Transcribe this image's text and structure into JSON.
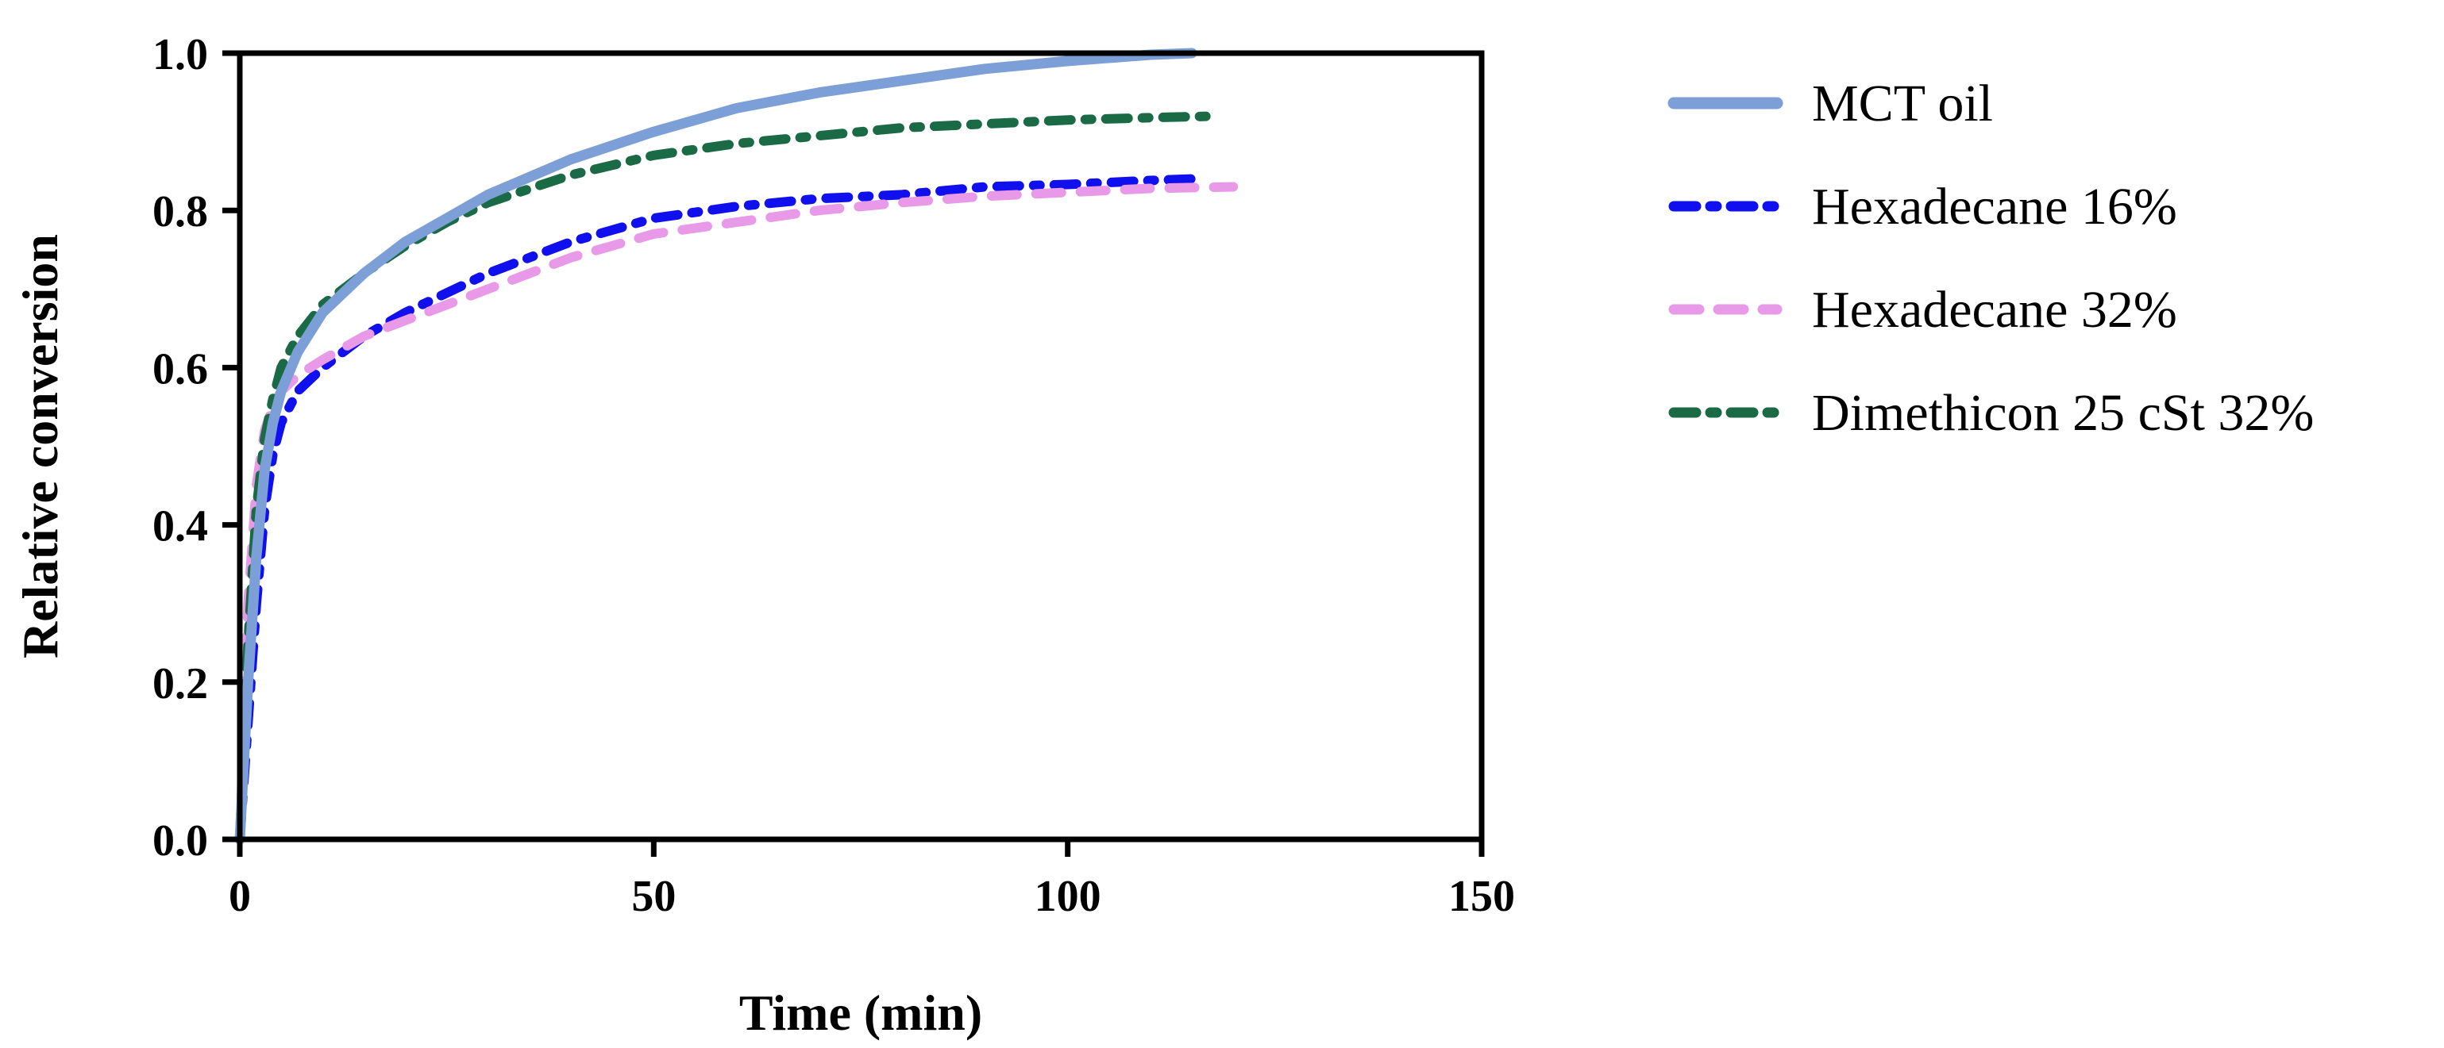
{
  "chart_data": {
    "type": "line",
    "xlabel": "Time (min)",
    "ylabel": "Relative conversion",
    "xlim": [
      0,
      150
    ],
    "ylim": [
      0.0,
      1.0
    ],
    "xticks": [
      0,
      50,
      100,
      150
    ],
    "xtick_labels": [
      "0",
      "50",
      "100",
      "150"
    ],
    "yticks": [
      0.0,
      0.2,
      0.4,
      0.6,
      0.8,
      1.0
    ],
    "ytick_labels": [
      "0.0",
      "0.2",
      "0.4",
      "0.6",
      "0.8",
      "1.0"
    ],
    "grid": false,
    "legend_position": "right",
    "series": [
      {
        "name": "MCT oil",
        "color": "#7b9fd6",
        "style": "solid",
        "x": [
          0,
          1,
          2,
          3,
          4,
          5,
          7,
          10,
          15,
          20,
          25,
          30,
          40,
          50,
          60,
          70,
          80,
          90,
          100,
          110,
          115
        ],
        "y": [
          0.0,
          0.2,
          0.36,
          0.47,
          0.53,
          0.57,
          0.62,
          0.67,
          0.72,
          0.76,
          0.79,
          0.82,
          0.865,
          0.9,
          0.93,
          0.95,
          0.965,
          0.98,
          0.99,
          0.998,
          1.0
        ]
      },
      {
        "name": "Hexadecane 16%",
        "color": "#1010ee",
        "style": "dash-dot",
        "x": [
          0,
          1,
          2,
          3,
          4,
          5,
          7,
          10,
          15,
          20,
          30,
          40,
          50,
          60,
          70,
          80,
          90,
          100,
          110,
          115
        ],
        "y": [
          0.0,
          0.15,
          0.3,
          0.42,
          0.49,
          0.53,
          0.57,
          0.6,
          0.64,
          0.67,
          0.72,
          0.76,
          0.79,
          0.805,
          0.815,
          0.82,
          0.83,
          0.833,
          0.838,
          0.84
        ]
      },
      {
        "name": "Hexadecane 32%",
        "color": "#e89ae8",
        "style": "dash",
        "x": [
          0,
          1,
          2,
          3,
          4,
          5,
          7,
          10,
          15,
          20,
          30,
          40,
          50,
          60,
          70,
          80,
          90,
          100,
          110,
          120
        ],
        "y": [
          0.0,
          0.3,
          0.45,
          0.52,
          0.55,
          0.57,
          0.59,
          0.61,
          0.64,
          0.66,
          0.7,
          0.74,
          0.77,
          0.785,
          0.8,
          0.81,
          0.818,
          0.823,
          0.828,
          0.83
        ]
      },
      {
        "name": "Dimethicon 25 cSt 32%",
        "color": "#1a6b45",
        "style": "dash-dot",
        "x": [
          0,
          1,
          2,
          3,
          4,
          5,
          7,
          10,
          15,
          20,
          25,
          30,
          40,
          50,
          60,
          70,
          80,
          90,
          100,
          110,
          118
        ],
        "y": [
          0.0,
          0.25,
          0.42,
          0.51,
          0.56,
          0.6,
          0.64,
          0.68,
          0.72,
          0.755,
          0.785,
          0.81,
          0.845,
          0.87,
          0.885,
          0.895,
          0.905,
          0.91,
          0.915,
          0.918,
          0.92
        ]
      }
    ]
  }
}
